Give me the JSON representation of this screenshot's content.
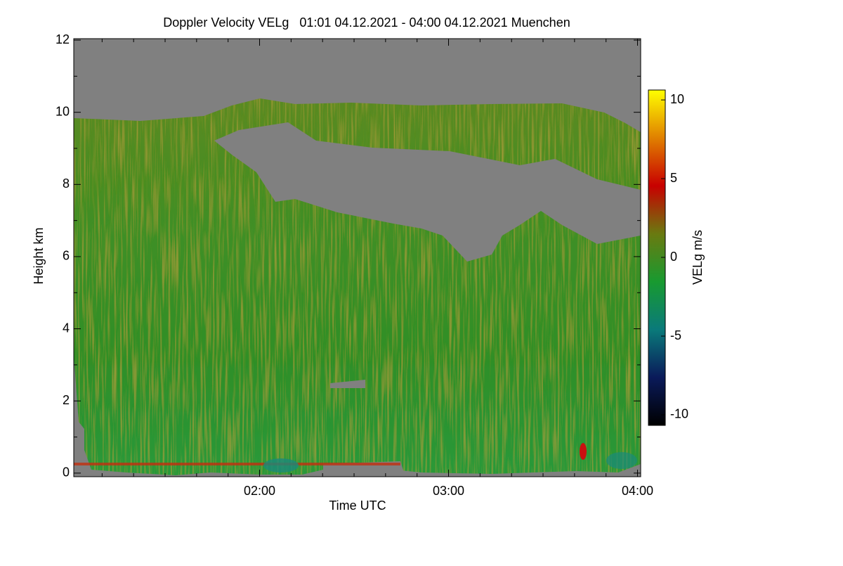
{
  "chart_data": {
    "type": "heatmap",
    "title": "Doppler Velocity VELg   01:01 04.12.2021 - 04:00 04.12.2021 Muenchen",
    "x_label": "Time UTC",
    "y_label": "Height km",
    "colorbar_label": "VELg m/s",
    "xlim": [
      61,
      241
    ],
    "xticks": [
      {
        "value": 120,
        "label": "02:00"
      },
      {
        "value": 180,
        "label": "03:00"
      },
      {
        "value": 240,
        "label": "04:00"
      }
    ],
    "xminorticks": [
      70,
      80,
      90,
      100,
      110,
      130,
      140,
      150,
      160,
      170,
      190,
      200,
      210,
      220,
      230
    ],
    "ylim": [
      -0.1,
      12.04
    ],
    "yticks": [
      0,
      2,
      4,
      6,
      8,
      10,
      12
    ],
    "yminorticks": [
      1,
      3,
      5,
      7,
      9,
      11
    ],
    "clim": [
      -10.67,
      10.63
    ],
    "cticks": [
      -10,
      -5,
      0,
      5,
      10
    ],
    "colormap": [
      "#000000",
      "#0a1a5a",
      "#0a7a7a",
      "#189a30",
      "#6a7a10",
      "#c80000",
      "#e08000",
      "#ffff00"
    ],
    "missing_color": "#808080"
  }
}
